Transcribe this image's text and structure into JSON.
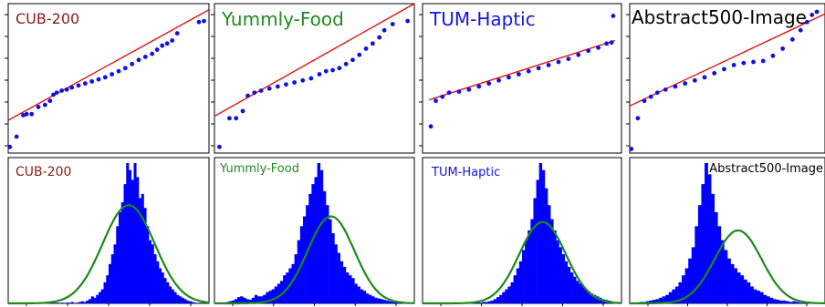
{
  "colors": {
    "points": "#1010e6",
    "fit_line": "#e60000",
    "histogram": "#0000ff",
    "normal_curve": "#1a8a1a",
    "frame": "#000000"
  },
  "chart_data": [
    {
      "type": "scatter",
      "title": "CUB-200",
      "title_color": "#8b1a1a",
      "xlim": [
        -3,
        3
      ],
      "ylim": [
        -3.4,
        3.9
      ],
      "fit_line": {
        "x": [
          -3,
          3
        ],
        "y": [
          -1.8,
          3.6
        ]
      },
      "points": [
        [
          -2.95,
          -3.1
        ],
        [
          -2.75,
          -2.6
        ],
        [
          -2.55,
          -1.55
        ],
        [
          -2.45,
          -1.5
        ],
        [
          -2.3,
          -1.5
        ],
        [
          -2.1,
          -1.15
        ],
        [
          -1.9,
          -1.05
        ],
        [
          -1.75,
          -0.85
        ],
        [
          -1.65,
          -0.55
        ],
        [
          -1.55,
          -0.45
        ],
        [
          -1.4,
          -0.35
        ],
        [
          -1.25,
          -0.3
        ],
        [
          -1.1,
          -0.2
        ],
        [
          -0.9,
          -0.1
        ],
        [
          -0.7,
          0.0
        ],
        [
          -0.5,
          0.1
        ],
        [
          -0.3,
          0.2
        ],
        [
          -0.1,
          0.3
        ],
        [
          0.1,
          0.45
        ],
        [
          0.3,
          0.6
        ],
        [
          0.5,
          0.75
        ],
        [
          0.7,
          0.95
        ],
        [
          0.9,
          1.15
        ],
        [
          1.1,
          1.3
        ],
        [
          1.3,
          1.45
        ],
        [
          1.45,
          1.65
        ],
        [
          1.6,
          1.85
        ],
        [
          1.75,
          1.95
        ],
        [
          1.9,
          2.1
        ],
        [
          2.05,
          2.45
        ],
        [
          2.7,
          3.0
        ],
        [
          2.85,
          3.05
        ]
      ]
    },
    {
      "type": "scatter",
      "title": "Yummly-Food",
      "title_color": "#1f8a1f",
      "xlim": [
        -3,
        3
      ],
      "ylim": [
        -3.4,
        3.9
      ],
      "fit_line": {
        "x": [
          -3,
          3
        ],
        "y": [
          -1.6,
          3.9
        ]
      },
      "points": [
        [
          -2.85,
          -3.1
        ],
        [
          -2.55,
          -1.7
        ],
        [
          -2.35,
          -1.7
        ],
        [
          -2.15,
          -1.35
        ],
        [
          -2.0,
          -0.6
        ],
        [
          -1.8,
          -0.45
        ],
        [
          -1.6,
          -0.35
        ],
        [
          -1.35,
          -0.25
        ],
        [
          -1.1,
          -0.15
        ],
        [
          -0.85,
          -0.05
        ],
        [
          -0.6,
          0.05
        ],
        [
          -0.35,
          0.15
        ],
        [
          -0.1,
          0.25
        ],
        [
          0.15,
          0.45
        ],
        [
          0.35,
          0.6
        ],
        [
          0.55,
          0.65
        ],
        [
          0.75,
          0.75
        ],
        [
          0.95,
          0.95
        ],
        [
          1.15,
          1.15
        ],
        [
          1.35,
          1.4
        ],
        [
          1.55,
          1.7
        ],
        [
          1.75,
          1.95
        ],
        [
          1.95,
          2.25
        ],
        [
          2.1,
          2.6
        ],
        [
          2.35,
          2.9
        ],
        [
          2.8,
          3.05
        ]
      ]
    },
    {
      "type": "scatter",
      "title": "TUM-Haptic",
      "title_color": "#1414e6",
      "xlim": [
        -3,
        3
      ],
      "ylim": [
        -3.4,
        3.9
      ],
      "fit_line": {
        "x": [
          -2.8,
          2.8
        ],
        "y": [
          -0.8,
          2.1
        ]
      },
      "points": [
        [
          -2.75,
          -2.1
        ],
        [
          -2.6,
          -0.85
        ],
        [
          -2.4,
          -0.65
        ],
        [
          -2.2,
          -0.45
        ],
        [
          -1.9,
          -0.4
        ],
        [
          -1.6,
          -0.3
        ],
        [
          -1.3,
          -0.15
        ],
        [
          -1.0,
          0.0
        ],
        [
          -0.7,
          0.15
        ],
        [
          -0.4,
          0.3
        ],
        [
          -0.1,
          0.45
        ],
        [
          0.2,
          0.6
        ],
        [
          0.5,
          0.75
        ],
        [
          0.8,
          0.9
        ],
        [
          1.1,
          1.05
        ],
        [
          1.4,
          1.2
        ],
        [
          1.7,
          1.4
        ],
        [
          2.0,
          1.6
        ],
        [
          2.3,
          1.75
        ],
        [
          2.55,
          1.95
        ],
        [
          2.7,
          2.0
        ],
        [
          2.75,
          3.3
        ]
      ]
    },
    {
      "type": "scatter",
      "title": "Abstract500-Image",
      "title_color": "#000000",
      "xlim": [
        -3,
        3
      ],
      "ylim": [
        -3.4,
        3.9
      ],
      "fit_line": {
        "x": [
          -3,
          3
        ],
        "y": [
          -1.1,
          3.4
        ]
      },
      "points": [
        [
          -2.95,
          -3.2
        ],
        [
          -2.75,
          -1.7
        ],
        [
          -2.55,
          -0.85
        ],
        [
          -2.35,
          -0.65
        ],
        [
          -2.15,
          -0.45
        ],
        [
          -1.9,
          -0.3
        ],
        [
          -1.6,
          -0.15
        ],
        [
          -1.3,
          0.0
        ],
        [
          -1.0,
          0.15
        ],
        [
          -0.7,
          0.3
        ],
        [
          -0.4,
          0.5
        ],
        [
          -0.1,
          0.7
        ],
        [
          0.2,
          0.9
        ],
        [
          0.5,
          1.0
        ],
        [
          0.8,
          1.05
        ],
        [
          1.1,
          1.1
        ],
        [
          1.4,
          1.35
        ],
        [
          1.7,
          1.7
        ],
        [
          2.0,
          2.15
        ],
        [
          2.25,
          2.6
        ],
        [
          2.45,
          3.0
        ],
        [
          2.6,
          3.35
        ],
        [
          2.75,
          3.5
        ]
      ]
    },
    {
      "type": "bar",
      "title": "CUB-200",
      "title_color": "#8b1a1a",
      "mean": 0.6,
      "sd": 0.78,
      "curve_peak": 0.7,
      "values": [
        0.005,
        0.0,
        0.005,
        0.0,
        0.0,
        0.005,
        0.0,
        0.0,
        0.005,
        0.0,
        0.0,
        0.005,
        0.0,
        0.0,
        0.0,
        0.005,
        0.0,
        0.005,
        0.0,
        0.005,
        0.0,
        0.005,
        0.0,
        0.005,
        0.005,
        0.01,
        0.0,
        0.005,
        0.01,
        0.015,
        0.01,
        0.02,
        0.03,
        0.05,
        0.04,
        0.06,
        0.08,
        0.1,
        0.15,
        0.2,
        0.28,
        0.35,
        0.42,
        0.55,
        0.65,
        0.72,
        0.85,
        1.0,
        0.95,
        0.88,
        1.0,
        0.9,
        0.75,
        0.78,
        0.68,
        0.55,
        0.45,
        0.42,
        0.35,
        0.3,
        0.25,
        0.22,
        0.18,
        0.15,
        0.12,
        0.1,
        0.08,
        0.06,
        0.05,
        0.04,
        0.03,
        0.02,
        0.015,
        0.01,
        0.005,
        0.0,
        0.005,
        0.0,
        0.0,
        0.005
      ]
    },
    {
      "type": "bar",
      "title": "Yummly-Food",
      "title_color": "#1f8a1f",
      "mean": 0.5,
      "sd": 0.7,
      "curve_peak": 0.62,
      "values": [
        0.0,
        0.005,
        0.0,
        0.005,
        0.01,
        0.015,
        0.02,
        0.03,
        0.045,
        0.05,
        0.04,
        0.03,
        0.025,
        0.04,
        0.06,
        0.05,
        0.05,
        0.06,
        0.08,
        0.09,
        0.1,
        0.12,
        0.14,
        0.16,
        0.2,
        0.22,
        0.25,
        0.28,
        0.35,
        0.45,
        0.55,
        0.62,
        0.7,
        0.78,
        0.85,
        0.9,
        1.0,
        0.95,
        0.8,
        0.7,
        0.6,
        0.5,
        0.42,
        0.36,
        0.3,
        0.26,
        0.22,
        0.2,
        0.18,
        0.14,
        0.12,
        0.1,
        0.09,
        0.07,
        0.06,
        0.05,
        0.04,
        0.035,
        0.03,
        0.025,
        0.02,
        0.015,
        0.01,
        0.01,
        0.005,
        0.005,
        0.0,
        0.0,
        0.005,
        0.0
      ]
    },
    {
      "type": "bar",
      "title": "TUM-Haptic",
      "title_color": "#1414e6",
      "mean": 0.62,
      "sd": 0.7,
      "curve_peak": 0.58,
      "values": [
        0.0,
        0.0,
        0.0,
        0.0,
        0.0,
        0.0,
        0.0,
        0.0,
        0.0,
        0.005,
        0.0,
        0.0,
        0.005,
        0.0,
        0.0,
        0.005,
        0.0,
        0.005,
        0.005,
        0.01,
        0.005,
        0.01,
        0.01,
        0.015,
        0.02,
        0.03,
        0.045,
        0.06,
        0.08,
        0.1,
        0.12,
        0.15,
        0.2,
        0.25,
        0.3,
        0.38,
        0.45,
        0.52,
        0.6,
        0.75,
        0.88,
        1.0,
        0.95,
        0.82,
        0.7,
        0.6,
        0.52,
        0.45,
        0.4,
        0.35,
        0.3,
        0.26,
        0.22,
        0.19,
        0.16,
        0.14,
        0.12,
        0.1,
        0.085,
        0.07,
        0.06,
        0.05,
        0.04,
        0.03,
        0.025,
        0.02,
        0.015,
        0.01,
        0.005,
        0.005
      ]
    },
    {
      "type": "bar",
      "title": "Abstract500-Image",
      "title_color": "#000000",
      "mean": 0.33,
      "sd": 0.72,
      "curve_peak": 0.52,
      "values": [
        0.005,
        0.005,
        0.005,
        0.01,
        0.01,
        0.015,
        0.02,
        0.025,
        0.03,
        0.04,
        0.05,
        0.06,
        0.08,
        0.1,
        0.12,
        0.15,
        0.2,
        0.25,
        0.32,
        0.4,
        0.55,
        0.7,
        0.85,
        1.0,
        0.92,
        0.78,
        0.65,
        0.55,
        0.45,
        0.38,
        0.32,
        0.28,
        0.25,
        0.22,
        0.2,
        0.17,
        0.15,
        0.12,
        0.1,
        0.09,
        0.08,
        0.06,
        0.05,
        0.04,
        0.03,
        0.025,
        0.02,
        0.02,
        0.015,
        0.01,
        0.015,
        0.01,
        0.005,
        0.005,
        0.005,
        0.0,
        0.005,
        0.0,
        0.0,
        0.0
      ]
    }
  ]
}
